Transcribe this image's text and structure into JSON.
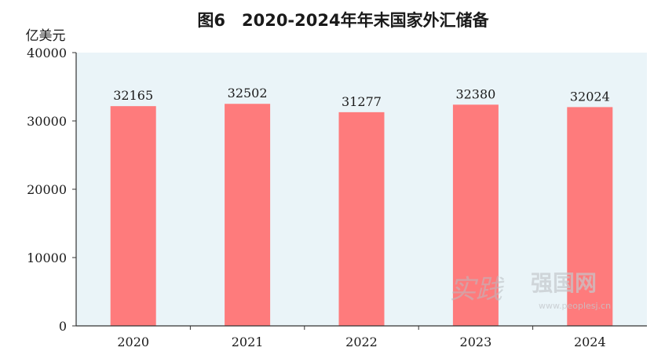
{
  "chart_data": {
    "type": "bar",
    "title": "图6　2020-2024年年末国家外汇储备",
    "ylabel": "亿美元",
    "xlabel": "",
    "categories": [
      "2020",
      "2021",
      "2022",
      "2023",
      "2024"
    ],
    "values": [
      32165,
      32502,
      31277,
      32380,
      32024
    ],
    "data_labels": [
      "32165",
      "32502",
      "31277",
      "32380",
      "32024"
    ],
    "ylim": [
      0,
      40000
    ],
    "yticks": [
      0,
      10000,
      20000,
      30000,
      40000
    ],
    "ytick_labels": [
      "0",
      "10000",
      "20000",
      "30000",
      "40000"
    ],
    "grid": false,
    "colors": {
      "bar": "#fe7b7c",
      "plot_bg": "#eaf4f8",
      "axis": "#333333"
    }
  },
  "watermark": {
    "chars": "实践",
    "brand": "强国网",
    "url": "www.peoplesj.cn"
  }
}
